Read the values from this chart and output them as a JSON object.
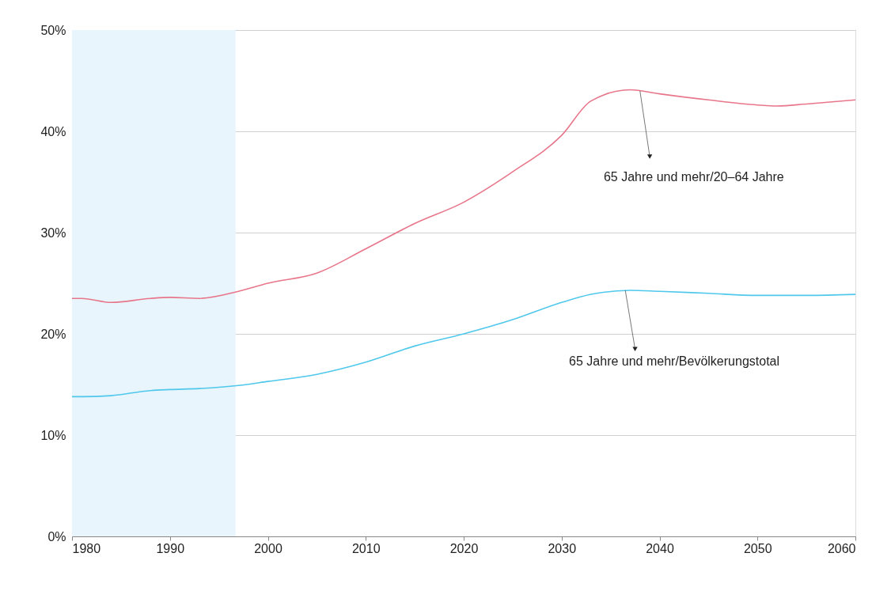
{
  "chart_data": {
    "type": "line",
    "x": [
      1980,
      1981,
      1984,
      1988,
      1990,
      1993,
      1997,
      2000,
      2005,
      2010,
      2015,
      2020,
      2025,
      2030,
      2033,
      2037,
      2040,
      2045,
      2050,
      2052,
      2055,
      2060
    ],
    "series": [
      {
        "color": "#e8768b",
        "values": [
          23.5,
          23.5,
          23.1,
          23.5,
          23.6,
          23.5,
          24.2,
          25.0,
          26.0,
          28.4,
          30.9,
          33.0,
          36.0,
          39.6,
          43.0,
          44.1,
          43.7,
          43.1,
          42.6,
          42.5,
          42.7,
          43.1
        ]
      },
      {
        "color": "#4fc8ec",
        "values": [
          13.8,
          13.8,
          13.9,
          14.4,
          14.5,
          14.6,
          14.9,
          15.3,
          16.0,
          17.2,
          18.8,
          20.0,
          21.4,
          23.1,
          23.9,
          24.3,
          24.2,
          24.0,
          23.8,
          23.8,
          23.8,
          23.9
        ]
      }
    ],
    "xlim": [
      1980,
      2060
    ],
    "xticks": [
      1980,
      1990,
      2000,
      2010,
      2020,
      2030,
      2040,
      2050,
      2060
    ],
    "ylim": [
      0,
      50
    ],
    "yticks": [
      {
        "value": 0,
        "label": "0%"
      },
      {
        "value": 10,
        "label": "10%"
      },
      {
        "value": 20,
        "label": "20%"
      },
      {
        "value": 30,
        "label": "30%"
      },
      {
        "value": 40,
        "label": "40%"
      },
      {
        "value": 50,
        "label": "50%"
      }
    ],
    "bands": [
      {
        "axis": "x",
        "from": 1980,
        "to": 1996.7,
        "color": "#e8f5fc"
      }
    ],
    "annotations": [
      {
        "text": "65 Jahre und mehr/20–64 Jahre",
        "x": 2038,
        "y": 44.0
      },
      {
        "text": "65 Jahre und mehr/Bevölkerungstotal",
        "x": 2036.5,
        "y": 24.3
      }
    ],
    "grid": "y",
    "marker": "none",
    "line_style": "solid"
  }
}
